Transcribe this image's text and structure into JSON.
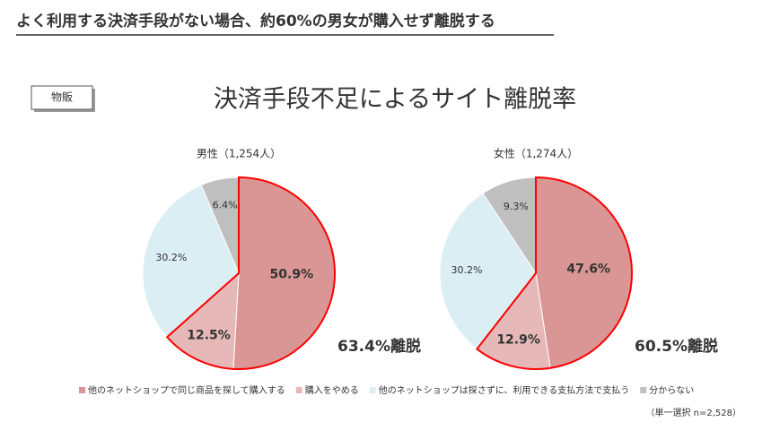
{
  "header": {
    "title": "よく利用する決済手段がない場合、約60%の男女が購入せず離脱する"
  },
  "badge": "物販",
  "chart_data": {
    "type": "pie",
    "title": "決済手段不足によるサイト離脱率",
    "categories": [
      "他のネットショップで同じ商品を探して購入する",
      "購入をやめる",
      "他のネットショップは探さずに、利用できる支払方法で支払う",
      "分からない"
    ],
    "colors": [
      "#d99694",
      "#e6b9b8",
      "#dbeef4",
      "#bfbfbf"
    ],
    "highlight_color": "#ff0000",
    "series": [
      {
        "name": "男性（1,254人）",
        "values": [
          50.9,
          12.5,
          30.2,
          6.4
        ],
        "value_labels": [
          "50.9%",
          "12.5%",
          "30.2%",
          "6.4%"
        ],
        "annotation": "63.4%離脱"
      },
      {
        "name": "女性（1,274人）",
        "values": [
          47.6,
          12.9,
          30.2,
          9.3
        ],
        "value_labels": [
          "47.6%",
          "12.9%",
          "30.2%",
          "9.3%"
        ],
        "annotation": "60.5%離脱"
      }
    ],
    "note": "（単一選択 n=2,528）"
  }
}
